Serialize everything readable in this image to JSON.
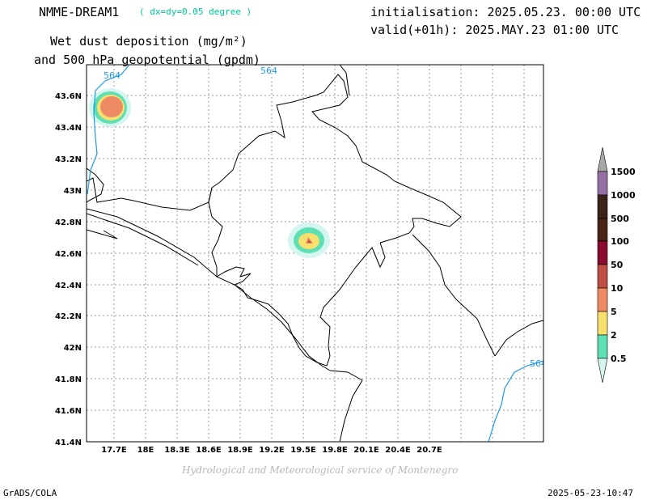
{
  "header": {
    "model_name": "NMME-DREAM1",
    "model_resolution": "( dx=dy=0.05 degree )",
    "initialisation": "initialisation: 2025.05.23. 00:00 UTC",
    "valid": "valid(+01h): 2025.MAY.23 01:00 UTC",
    "title_line1": "Wet dust deposition (mg/m²)",
    "title_line2": "and 500 hPa geopotential (gpdm)"
  },
  "map": {
    "lon_ticks": [
      "17.7E",
      "18E",
      "18.3E",
      "18.6E",
      "18.9E",
      "19.2E",
      "19.5E",
      "19.8E",
      "20.1E",
      "20.4E",
      "20.7E"
    ],
    "lat_ticks": [
      "43.6N",
      "43.4N",
      "43.2N",
      "43N",
      "42.8N",
      "42.6N",
      "42.4N",
      "42.2N",
      "42N",
      "41.8N",
      "41.6N",
      "41.4N"
    ],
    "contour_labels": [
      "564",
      "564",
      "564"
    ],
    "colors": {
      "contour": "#1e9be6",
      "coast": "#000000",
      "grid": "#9a9a9a"
    }
  },
  "legend": {
    "levels": [
      {
        "label": "0.5",
        "color": "#d4f5f0"
      },
      {
        "label": "2",
        "color": "#5ee0b4"
      },
      {
        "label": "5",
        "color": "#f7e06e"
      },
      {
        "label": "10",
        "color": "#ee8a64"
      },
      {
        "label": "50",
        "color": "#c04e44"
      },
      {
        "label": "100",
        "color": "#890c30"
      },
      {
        "label": "500",
        "color": "#482414"
      },
      {
        "label": "1000",
        "color": "#3c2418"
      },
      {
        "label": "1500",
        "color": "#9570a6"
      }
    ],
    "top_arrow_color": "#a8a8a8"
  },
  "footer": {
    "credit": "Hydrological and Meteorological service of Montenegro",
    "left": "GrADS/COLA",
    "right": "2025-05-23-10:47"
  }
}
